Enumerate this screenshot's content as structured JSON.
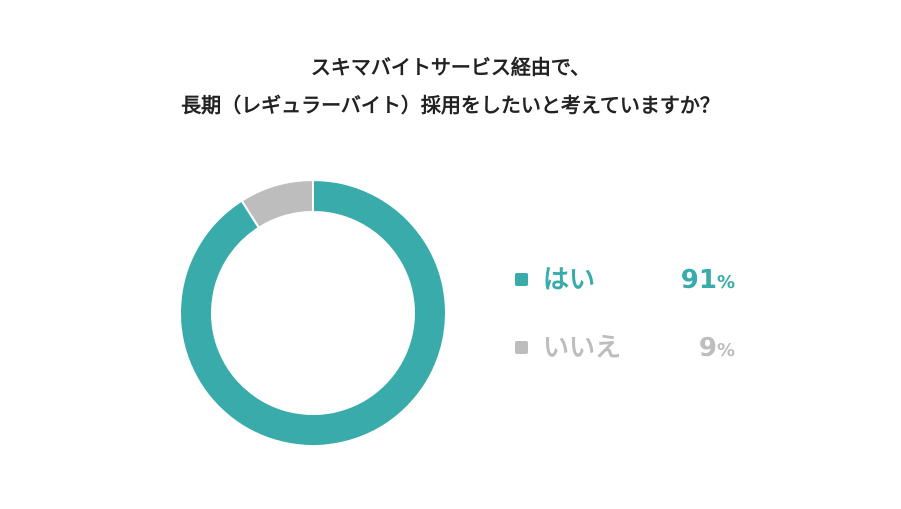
{
  "chart_data": {
    "type": "pie",
    "variant": "donut",
    "title": "スキマバイトサービス経由で、\n長期（レギュラーバイト）採用をしたいと考えていますか？",
    "title_lines": [
      "スキマバイトサービス経由で、",
      "長期（レギュラーバイト）採用をしたいと考えていますか？"
    ],
    "slices": [
      {
        "label": "はい",
        "value": 91,
        "value_text": "91",
        "unit": "%",
        "color": "#3aabab"
      },
      {
        "label": "いいえ",
        "value": 9,
        "value_text": "9",
        "unit": "%",
        "color": "#bdbdbd"
      }
    ],
    "legend_position": "right",
    "start_angle": "12 o'clock",
    "direction": "clockwise"
  }
}
